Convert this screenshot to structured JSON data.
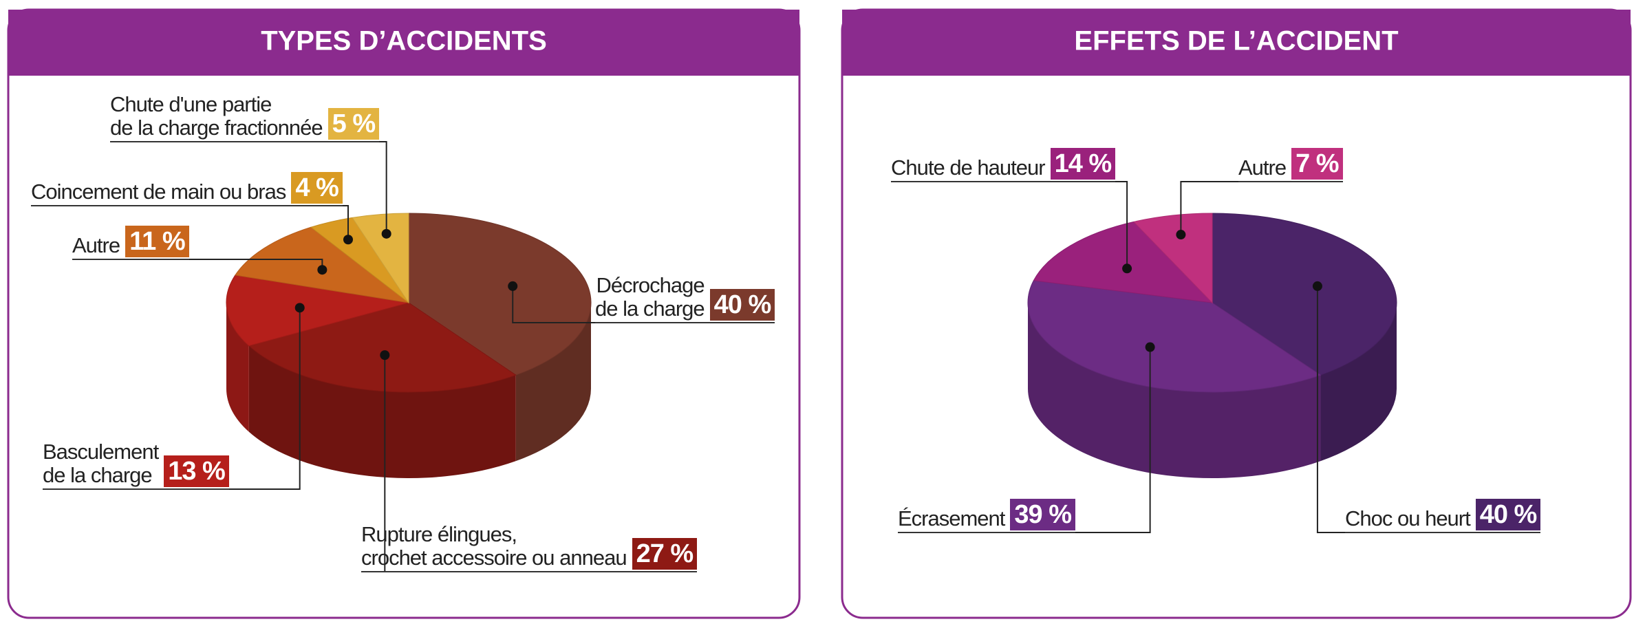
{
  "chart_data": [
    {
      "type": "pie",
      "title": "TYPES D’ACCIDENTS",
      "categories": [
        "Décrochage\nde la charge",
        "Rupture élingues,\ncrochet accessoire ou anneau",
        "Basculement\nde la charge",
        "Autre",
        "Coincement de main ou bras",
        "Chute d'une partie\nde la charge fractionnée"
      ],
      "values": [
        40,
        27,
        13,
        11,
        4,
        5
      ],
      "value_labels": [
        "40 %",
        "27 %",
        "13 %",
        "11 %",
        "4 %",
        "5 %"
      ],
      "colors": [
        "#7b3a2c",
        "#8e1a14",
        "#b51f1b",
        "#c9661c",
        "#d99a22",
        "#e3b441"
      ]
    },
    {
      "type": "pie",
      "title": "EFFETS DE L’ACCIDENT",
      "categories": [
        "Choc ou heurt",
        "Écrasement",
        "Chute de hauteur",
        "Autre"
      ],
      "values": [
        40,
        39,
        14,
        7
      ],
      "value_labels": [
        "40 %",
        "39 %",
        "14 %",
        "7 %"
      ],
      "colors": [
        "#4b2468",
        "#6c2c84",
        "#9a217c",
        "#c0307e"
      ]
    }
  ]
}
